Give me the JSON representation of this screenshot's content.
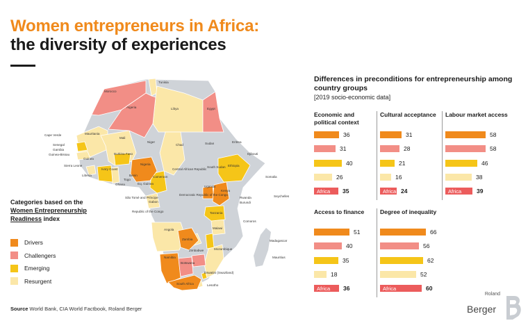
{
  "header": {
    "title_line1": "Women entrepreneurs in Africa:",
    "title_line2": "the diversity of experiences"
  },
  "legend": {
    "title_part1": "Categories based on the",
    "title_part2": "Women Entrepreneurship",
    "title_part3": "Readiness",
    "title_part4": "index",
    "items": [
      {
        "label": "Drivers",
        "color": "#f08a1c"
      },
      {
        "label": "Challengers",
        "color": "#f28e86"
      },
      {
        "label": "Emerging",
        "color": "#f5c518"
      },
      {
        "label": "Resurgent",
        "color": "#fbe7a8"
      }
    ]
  },
  "map_labels": {
    "tunisia": "Tunisia",
    "morocco": "Morocco",
    "algeria": "Algeria",
    "libya": "Libya",
    "egypt": "Egypt",
    "cape_verde": "Cape Verde",
    "mauritania": "Mauritania",
    "mali": "Mali",
    "niger": "Niger",
    "chad": "Chad",
    "sudan": "Sudan",
    "eritrea": "Eritrea",
    "djibouti": "Djibouti",
    "senegal": "Senegal",
    "gambia": "Gambia",
    "guinea_bissau": "Guinea-Bissau",
    "guinea": "Guinea",
    "sierra_leone": "Sierra Leone",
    "liberia": "Liberia",
    "burkina": "Burkina Faso",
    "ivory": "Ivory Coast",
    "ghana": "Ghana",
    "togo": "Togo",
    "benin": "Benin",
    "nigeria": "Nigeria",
    "eq_guinea": "Eq. Guinea",
    "cameroon": "Cameroon",
    "car": "Central African Republic",
    "south_sudan": "South Sudan",
    "ethiopia": "Ethiopia",
    "somalia": "Somalia",
    "sao_tome": "São Tomé and Príncipe",
    "gabon": "Gabon",
    "congo_rep": "Republic of the Congo",
    "drc": "Democratic Republic of the Congo",
    "uganda": "Uganda",
    "kenya": "Kenya",
    "rwanda": "Rwanda",
    "burundi": "Burundi",
    "seychelles": "Seychelles",
    "tanzania": "Tanzania",
    "angola": "Angola",
    "zambia": "Zambia",
    "malawi": "Malawi",
    "comoros": "Comoros",
    "zimbabwe": "Zimbabwe",
    "mozambique": "Mozambique",
    "madagascar": "Madagascar",
    "namibia": "Namibia",
    "botswana": "Botswana",
    "mauritius": "Mauritius",
    "eswatini": "Eswatini (Swaziland)",
    "south_africa": "South Africa",
    "lesotho": "Lesotho"
  },
  "panel": {
    "title": "Differences in preconditions for entrepreneurship among country groups",
    "subtitle": "[2019 socio-economic data]"
  },
  "chart_data": {
    "type": "bar",
    "orientation": "horizontal",
    "title": "Differences in preconditions for entrepreneurship among country groups",
    "subtitle": "[2019 socio-economic data]",
    "series_order": [
      "Drivers",
      "Challengers",
      "Emerging",
      "Resurgent",
      "Africa"
    ],
    "colors": {
      "Drivers": "#f08a1c",
      "Challengers": "#f28e86",
      "Emerging": "#f5c518",
      "Resurgent": "#fbe7a8",
      "Africa": "#ec5c5c"
    },
    "xlim": [
      0,
      70
    ],
    "panels": [
      {
        "title": "Economic and political context",
        "values": [
          36,
          31,
          40,
          26,
          35
        ]
      },
      {
        "title": "Cultural acceptance",
        "values": [
          31,
          28,
          21,
          16,
          24
        ]
      },
      {
        "title": "Labour market access",
        "values": [
          58,
          58,
          46,
          38,
          39
        ]
      },
      {
        "title": "Access to finance",
        "values": [
          51,
          40,
          35,
          18,
          36
        ]
      },
      {
        "title": "Degree of inequality",
        "values": [
          66,
          56,
          62,
          52,
          60
        ]
      }
    ]
  },
  "footer": {
    "source_label": "Source",
    "source_text": "World Bank, CIA World Factbook, Roland Berger"
  },
  "logo": {
    "line1": "Roland",
    "line2": "Berger"
  }
}
